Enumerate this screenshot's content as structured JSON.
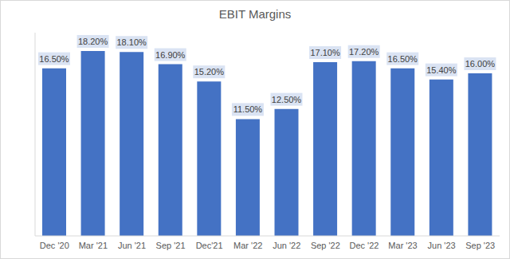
{
  "chart_data": {
    "type": "bar",
    "title": "EBIT Margins",
    "categories": [
      "Dec '20",
      "Mar '21",
      "Jun '21",
      "Sep '21",
      "Dec'21",
      "Mar '22",
      "Jun '22",
      "Sep '22",
      "Dec '22",
      "Mar '23",
      "Jun '23",
      "Sep '23"
    ],
    "values": [
      16.5,
      18.2,
      18.1,
      16.9,
      15.2,
      11.5,
      12.5,
      17.1,
      17.2,
      16.5,
      15.4,
      16.0
    ],
    "value_labels": [
      "16.50%",
      "18.20%",
      "18.10%",
      "16.90%",
      "15.20%",
      "11.50%",
      "12.50%",
      "17.10%",
      "17.20%",
      "16.50%",
      "15.40%",
      "16.00%"
    ],
    "color": "#4472c4",
    "ylim": [
      0,
      20
    ],
    "grid": false,
    "data_labels": true,
    "tick_labels": "x"
  }
}
